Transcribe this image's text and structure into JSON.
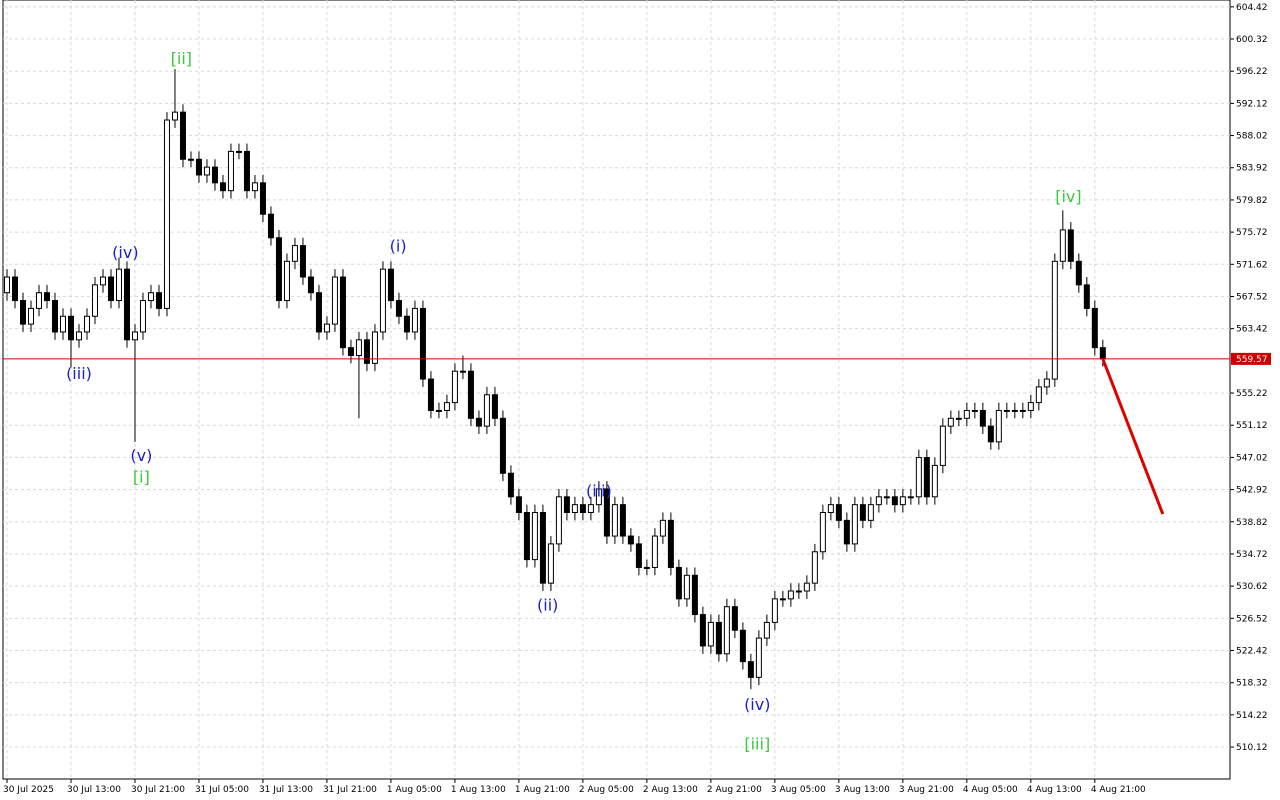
{
  "chart_data": {
    "type": "candlestick",
    "open": [
      568,
      570,
      567,
      564,
      566,
      568,
      567,
      563,
      565,
      562,
      563,
      565,
      569,
      570,
      567,
      571,
      562,
      563,
      567,
      568,
      566,
      590,
      591,
      585,
      585,
      583,
      584,
      582,
      581,
      586,
      586,
      581,
      582,
      578,
      575,
      567,
      572,
      574,
      570,
      568,
      563,
      564,
      570,
      561,
      560,
      562,
      559,
      563,
      571,
      567,
      565,
      563,
      566,
      557,
      553,
      553,
      554,
      558,
      558,
      552,
      551,
      555,
      552,
      545,
      542,
      540,
      534,
      540,
      531,
      536,
      542,
      540,
      541,
      540,
      541,
      543,
      537,
      541,
      537,
      536,
      533,
      533,
      537,
      539,
      533,
      529,
      532,
      527,
      523,
      526,
      522,
      528,
      525,
      521,
      519,
      524,
      526,
      529,
      529,
      530,
      530,
      531,
      535,
      540,
      541,
      539,
      536,
      541,
      539,
      541,
      542,
      542,
      541,
      542,
      542,
      547,
      542,
      546,
      551,
      552,
      552,
      553,
      553,
      551,
      549,
      553,
      553,
      553,
      553,
      554,
      556,
      557,
      572,
      576,
      572,
      569,
      566,
      561
    ],
    "high": [
      571,
      571,
      568,
      567,
      569,
      569,
      568,
      566,
      566,
      564,
      566,
      570,
      571,
      571,
      572.5,
      572,
      564,
      568,
      569,
      569,
      591,
      596.5,
      592,
      586,
      586,
      585,
      585,
      583,
      587,
      587,
      587,
      583,
      583,
      579,
      576,
      573,
      575,
      575,
      571,
      569,
      565,
      571,
      571,
      562,
      563,
      563,
      564,
      572,
      572,
      568,
      566,
      567,
      567,
      558,
      554,
      555,
      559,
      560,
      559,
      553,
      556,
      556,
      553,
      546,
      543,
      541,
      541,
      541,
      537,
      543,
      543,
      542,
      542,
      542,
      544,
      544,
      542,
      542,
      538,
      537,
      534,
      538,
      540,
      540,
      534,
      533,
      533,
      528,
      527,
      527,
      529,
      529,
      526,
      522,
      525,
      527,
      530,
      530,
      531,
      531,
      532,
      536,
      541,
      542,
      542,
      540,
      542,
      542,
      542,
      543,
      543,
      543,
      543,
      543,
      548,
      548,
      547,
      552,
      553,
      553,
      554,
      554,
      554,
      552,
      554,
      554,
      554,
      554,
      555,
      557,
      558,
      573,
      578.5,
      577,
      573,
      570,
      567,
      562
    ],
    "low": [
      567,
      566,
      563,
      563,
      565,
      566,
      562,
      562,
      558.5,
      561,
      562,
      564,
      568,
      566,
      566,
      561,
      549,
      562,
      566,
      565,
      565,
      589,
      584,
      584,
      582,
      582,
      581,
      580,
      580,
      585,
      580,
      580,
      577,
      574,
      566,
      566,
      571,
      569,
      567,
      562,
      562,
      563,
      560,
      559,
      552,
      558,
      558,
      562,
      566,
      564,
      562,
      562,
      556,
      552,
      552,
      552,
      553,
      557,
      551,
      550,
      550,
      551,
      544,
      541,
      539,
      533,
      533,
      530,
      530,
      535,
      539,
      539,
      539,
      539,
      540,
      536,
      536,
      536,
      535,
      532,
      532,
      532,
      536,
      532,
      528,
      528,
      526,
      522,
      522,
      521,
      521,
      524,
      520,
      517.5,
      518,
      523,
      525,
      528,
      528,
      529,
      529,
      530,
      534,
      539,
      538,
      535,
      535,
      538,
      538,
      540,
      541,
      540,
      540,
      541,
      541,
      541,
      541,
      545,
      550,
      551,
      551,
      552,
      550,
      548,
      548,
      552,
      552,
      552,
      552,
      553,
      555,
      556,
      571,
      571,
      568,
      565,
      560,
      558.6
    ],
    "close": [
      570,
      567,
      564,
      566,
      568,
      567,
      563,
      565,
      562,
      563,
      565,
      569,
      570,
      567,
      571,
      562,
      563,
      567,
      568,
      566,
      590,
      591,
      585,
      585,
      583,
      584,
      582,
      581,
      586,
      586,
      581,
      582,
      578,
      575,
      567,
      572,
      574,
      570,
      568,
      563,
      564,
      570,
      561,
      560,
      562,
      559,
      563,
      571,
      567,
      565,
      563,
      566,
      557,
      553,
      553,
      554,
      558,
      558,
      552,
      551,
      555,
      552,
      545,
      542,
      540,
      534,
      540,
      531,
      536,
      542,
      540,
      541,
      540,
      541,
      543,
      537,
      541,
      537,
      536,
      533,
      533,
      537,
      539,
      533,
      529,
      532,
      527,
      523,
      526,
      522,
      528,
      525,
      521,
      519,
      524,
      526,
      529,
      529,
      530,
      530,
      531,
      535,
      540,
      541,
      539,
      536,
      541,
      539,
      541,
      542,
      542,
      541,
      542,
      542,
      547,
      542,
      546,
      551,
      552,
      552,
      553,
      553,
      551,
      549,
      553,
      553,
      553,
      553,
      554,
      556,
      557,
      572,
      576,
      572,
      569,
      566,
      561,
      559.57
    ],
    "up_color": "#ffffff",
    "down_color": "#000000",
    "xlim": [
      -0.5,
      152.9
    ],
    "ylim": [
      506.05,
      605.29
    ],
    "xticks": [
      {
        "value": 0,
        "label": "30 Jul 2025"
      },
      {
        "value": 8,
        "label": "30 Jul 13:00"
      },
      {
        "value": 16,
        "label": "30 Jul 21:00"
      },
      {
        "value": 24,
        "label": "31 Jul 05:00"
      },
      {
        "value": 32,
        "label": "31 Jul 13:00"
      },
      {
        "value": 40,
        "label": "31 Jul 21:00"
      },
      {
        "value": 48,
        "label": "1 Aug 05:00"
      },
      {
        "value": 56,
        "label": "1 Aug 13:00"
      },
      {
        "value": 64,
        "label": "1 Aug 21:00"
      },
      {
        "value": 72,
        "label": "2 Aug 05:00"
      },
      {
        "value": 80,
        "label": "2 Aug 13:00"
      },
      {
        "value": 88,
        "label": "2 Aug 21:00"
      },
      {
        "value": 96,
        "label": "3 Aug 05:00"
      },
      {
        "value": 104,
        "label": "3 Aug 13:00"
      },
      {
        "value": 112,
        "label": "3 Aug 21:00"
      },
      {
        "value": 120,
        "label": "4 Aug 05:00"
      },
      {
        "value": 128,
        "label": "4 Aug 13:00"
      },
      {
        "value": 136,
        "label": "4 Aug 21:00"
      }
    ],
    "yticks": [
      604.42,
      600.32,
      596.22,
      592.12,
      588.02,
      583.92,
      579.82,
      575.72,
      571.62,
      567.52,
      563.42,
      555.22,
      551.12,
      547.02,
      542.92,
      538.82,
      534.72,
      530.62,
      526.52,
      522.42,
      518.32,
      514.22,
      510.12
    ],
    "grid": true,
    "current_price": {
      "value": 559.57,
      "color": "#cc0000"
    },
    "forecast": {
      "x": [
        137,
        144.5
      ],
      "y": [
        559.57,
        539.8
      ],
      "color": "#e00000"
    },
    "annotations": [
      {
        "text": "(iii)",
        "x": 9,
        "y": 557.8,
        "color": "#2020c8"
      },
      {
        "text": "(iv)",
        "x": 14.8,
        "y": 573.2,
        "color": "#2020c8"
      },
      {
        "text": "(v)",
        "x": 16.8,
        "y": 547.3,
        "color": "#2020c8"
      },
      {
        "text": "[i]",
        "x": 16.8,
        "y": 544.6,
        "color": "#3cc83c"
      },
      {
        "text": "[ii]",
        "x": 21.8,
        "y": 597.9,
        "color": "#3cc83c"
      },
      {
        "text": "(i)",
        "x": 48.9,
        "y": 574.0,
        "color": "#2020c8"
      },
      {
        "text": "(ii)",
        "x": 67.6,
        "y": 528.3,
        "color": "#2020c8"
      },
      {
        "text": "(iii)",
        "x": 74,
        "y": 542.8,
        "color": "#2020c8"
      },
      {
        "text": "(iv)",
        "x": 93.8,
        "y": 515.6,
        "color": "#2020c8"
      },
      {
        "text": "[iii]",
        "x": 93.8,
        "y": 510.6,
        "color": "#3cc83c"
      },
      {
        "text": "[iv]",
        "x": 132.7,
        "y": 580.3,
        "color": "#3cc83c"
      }
    ]
  }
}
